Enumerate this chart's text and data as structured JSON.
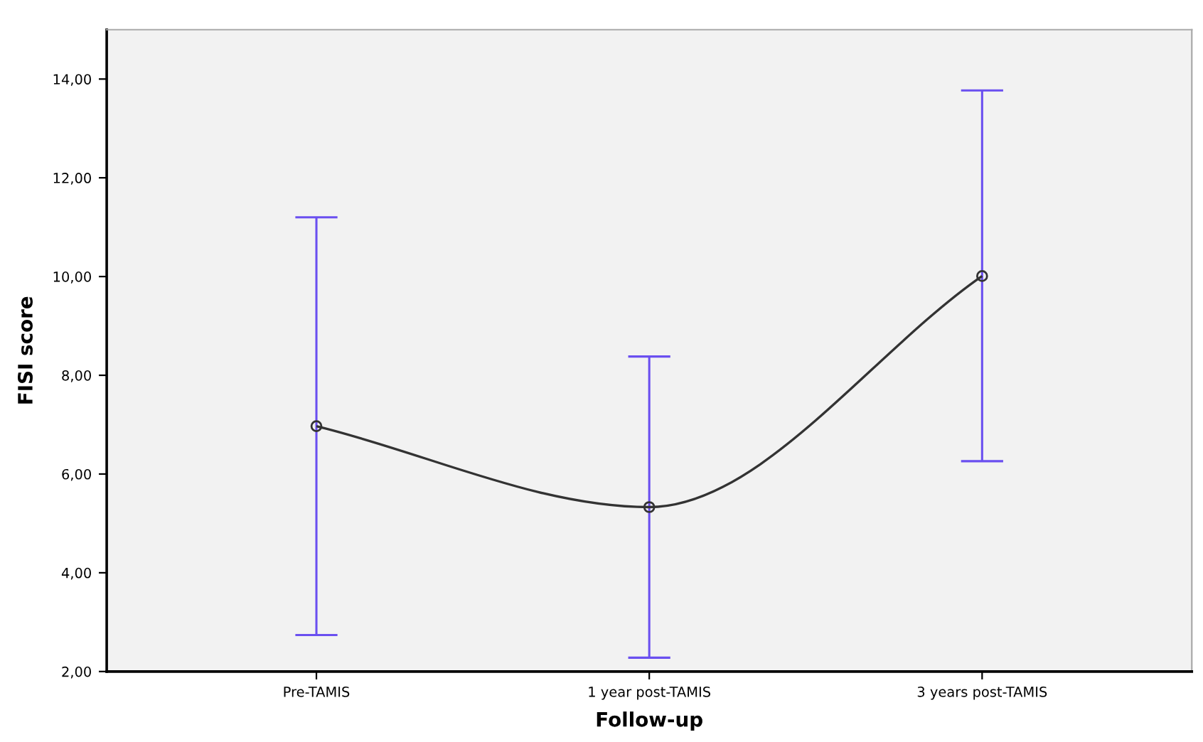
{
  "chart_data": {
    "type": "line",
    "xlabel": "Follow-up",
    "ylabel": "FISI score",
    "categories": [
      "Pre-TAMIS",
      "1 year post-TAMIS",
      "3 years post-TAMIS"
    ],
    "values": [
      6.97,
      5.33,
      10.01
    ],
    "color": "#333333",
    "errors": [
      [
        2.74,
        11.2
      ],
      [
        2.28,
        8.38
      ],
      [
        6.26,
        13.77
      ]
    ],
    "marker": "circle",
    "line_style": "solid",
    "grid": false,
    "legend": false,
    "ylim": [
      2,
      15
    ],
    "yticks": [
      {
        "value": 2,
        "label": "2,00"
      },
      {
        "value": 4,
        "label": "4,00"
      },
      {
        "value": 6,
        "label": "6,00"
      },
      {
        "value": 8,
        "label": "8,00"
      },
      {
        "value": 10,
        "label": "10,00"
      },
      {
        "value": 12,
        "label": "12,00"
      },
      {
        "value": 14,
        "label": "14,00"
      }
    ]
  }
}
